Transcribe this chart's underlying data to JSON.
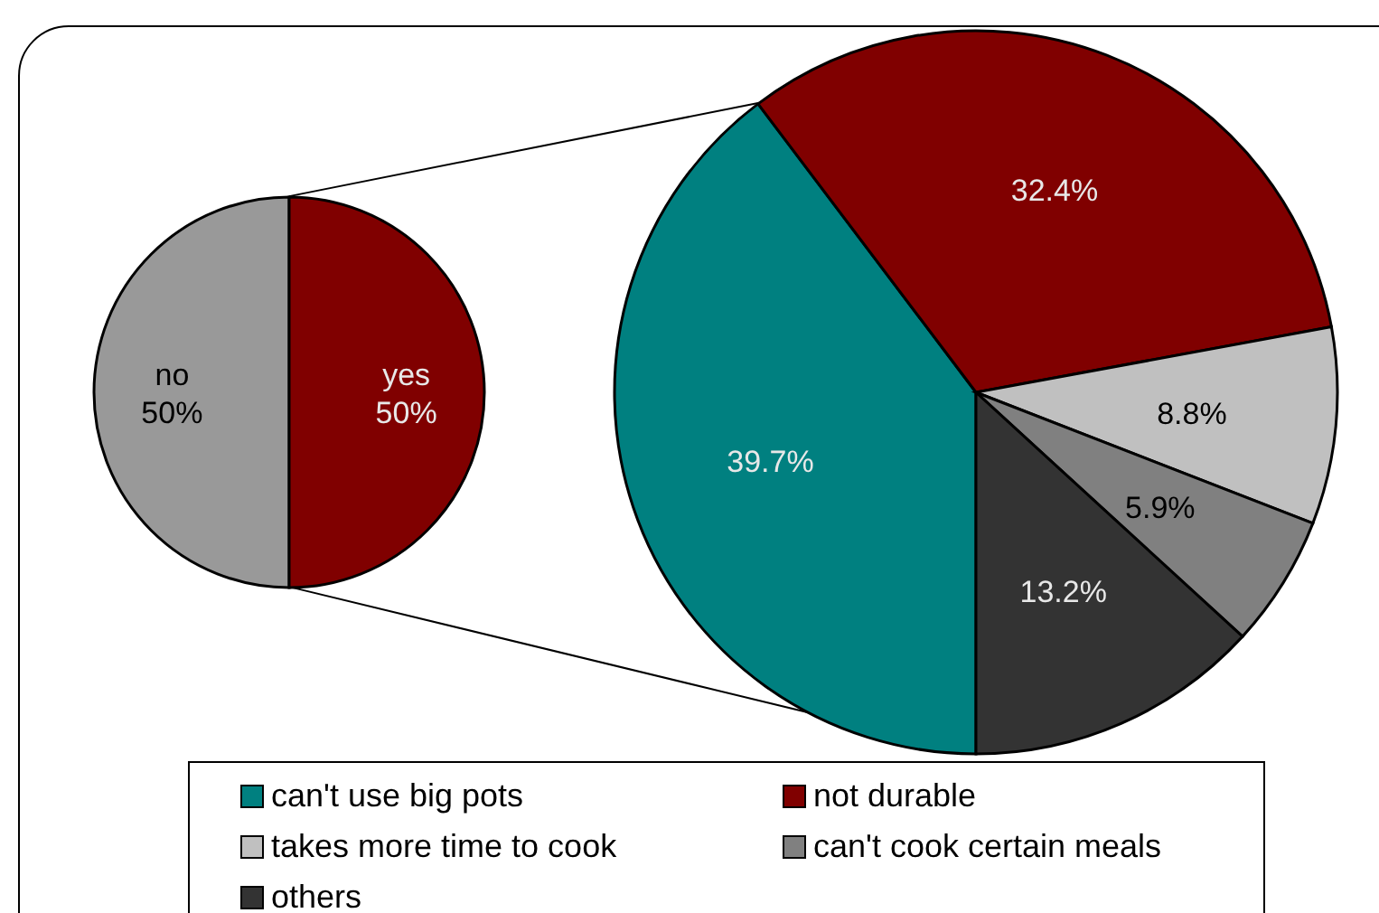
{
  "chart_data": [
    {
      "type": "pie",
      "categories": [
        "no",
        "yes"
      ],
      "values": [
        50,
        50
      ],
      "colors": [
        "#999999",
        "#800000"
      ],
      "value_labels": [
        "50%",
        "50%"
      ],
      "legend": false
    },
    {
      "type": "pie",
      "categories": [
        "can't use big pots",
        "not durable",
        "takes more time to cook",
        "can't cook certain meals",
        "others"
      ],
      "values": [
        39.7,
        32.4,
        8.8,
        5.9,
        13.2
      ],
      "colors": [
        "#008080",
        "#800000",
        "#c0c0c0",
        "#808080",
        "#333333"
      ],
      "value_labels": [
        "39.7%",
        "32.4%",
        "8.8%",
        "5.9%",
        "13.2%"
      ],
      "legend": "bottom"
    }
  ]
}
